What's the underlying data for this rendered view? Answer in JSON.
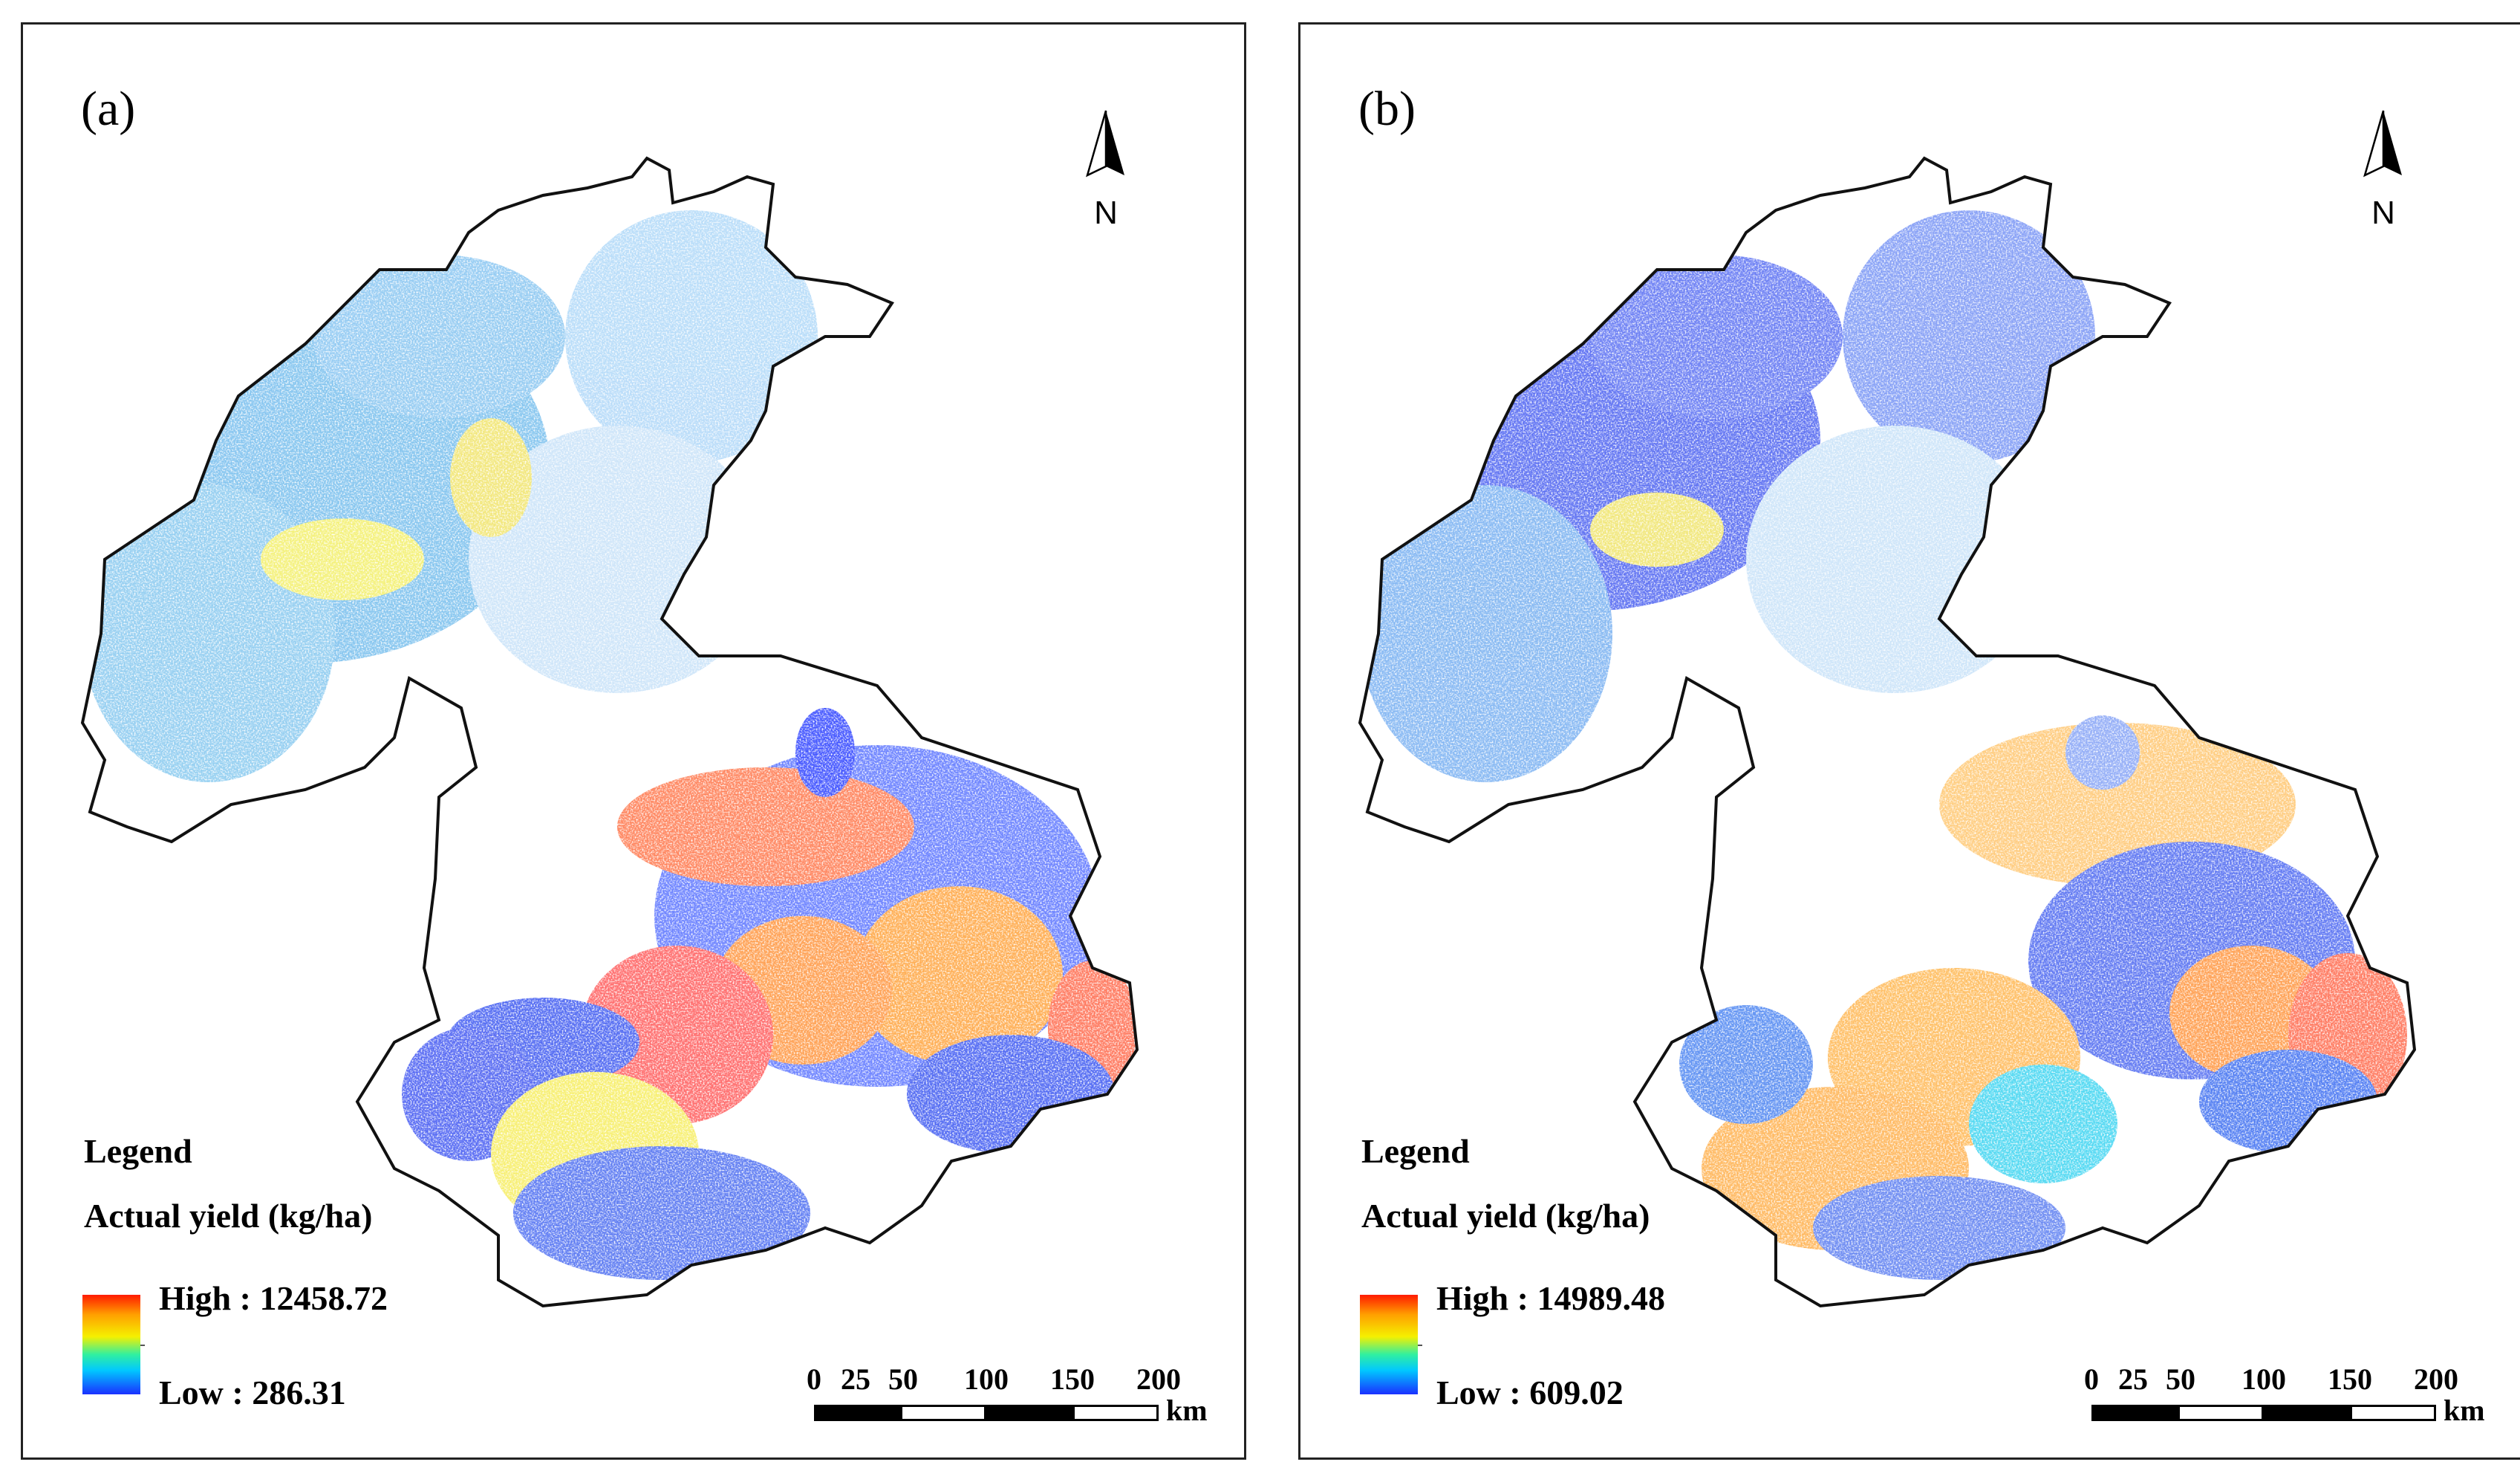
{
  "panels": [
    {
      "label": "(a)",
      "north_label": "N",
      "legend": {
        "title": "Legend",
        "subtitle": "Actual yield (kg/ha)",
        "high": "High : 12458.72",
        "low": "Low : 286.31"
      },
      "scale": {
        "ticks": [
          "0",
          "25",
          "50",
          "100",
          "150",
          "200"
        ],
        "unit": "km"
      },
      "colors": {
        "outline": "#111111",
        "low": "#1a30ff",
        "high": "#ff1a00"
      }
    },
    {
      "label": "(b)",
      "north_label": "N",
      "legend": {
        "title": "Legend",
        "subtitle": "Actual yield (kg/ha)",
        "high": "High : 14989.48",
        "low": "Low : 609.02"
      },
      "scale": {
        "ticks": [
          "0",
          "25",
          "50",
          "100",
          "150",
          "200"
        ],
        "unit": "km"
      },
      "colors": {
        "outline": "#111111",
        "low": "#1a30ff",
        "high": "#ff1a00"
      }
    }
  ]
}
